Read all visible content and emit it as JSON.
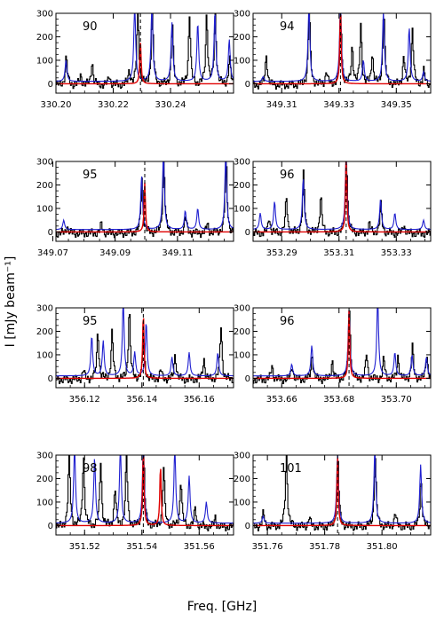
{
  "figure": {
    "ylabel": "I  [mJy beam⁻¹]",
    "xlabel": "Freq.  [GHz]"
  },
  "colors": {
    "observed": "#000000",
    "model_total": "#1f1fd0",
    "model_line": "#e00000"
  },
  "chart_data": [
    {
      "type": "line",
      "panel_label": "90",
      "xlim": [
        330.2,
        330.262
      ],
      "ylim": [
        -40,
        300
      ],
      "xticks": [
        "330.20",
        "330.22",
        "330.24"
      ],
      "xtick_values": [
        330.2,
        330.22,
        330.24
      ],
      "yticks": [
        "0",
        "100",
        "200",
        "300"
      ],
      "ytick_values": [
        0,
        100,
        200,
        300
      ],
      "line_center": 330.2295,
      "red_peaks": [
        [
          330.2295,
          180
        ]
      ],
      "blue_peaks": [
        [
          330.2035,
          90
        ],
        [
          330.2275,
          330
        ],
        [
          330.2335,
          330
        ],
        [
          330.2405,
          250
        ],
        [
          330.2495,
          250
        ],
        [
          330.2555,
          300
        ],
        [
          330.2605,
          180
        ]
      ],
      "black_peaks": [
        [
          330.2035,
          120
        ],
        [
          330.2085,
          40
        ],
        [
          330.2125,
          100
        ],
        [
          330.2185,
          40
        ],
        [
          330.2255,
          60
        ],
        [
          330.2285,
          330
        ],
        [
          330.2335,
          330
        ],
        [
          330.2405,
          260
        ],
        [
          330.2465,
          300
        ],
        [
          330.2525,
          300
        ],
        [
          330.2555,
          300
        ],
        [
          330.2605,
          110
        ]
      ]
    },
    {
      "type": "line",
      "panel_label": "94",
      "xlim": [
        349.3,
        349.362
      ],
      "ylim": [
        -40,
        300
      ],
      "xticks": [
        "349.31",
        "349.33",
        "349.35"
      ],
      "xtick_values": [
        349.31,
        349.33,
        349.35
      ],
      "yticks": [
        "0",
        "100",
        "200",
        "300"
      ],
      "ytick_values": [
        0,
        100,
        200,
        300
      ],
      "line_center": 349.3305,
      "red_peaks": [
        [
          349.3305,
          320
        ]
      ],
      "blue_peaks": [
        [
          349.3035,
          20
        ],
        [
          349.3195,
          330
        ],
        [
          349.3305,
          330
        ],
        [
          349.3385,
          90
        ],
        [
          349.3455,
          300
        ],
        [
          349.3545,
          230
        ],
        [
          349.3595,
          40
        ]
      ],
      "black_peaks": [
        [
          349.3045,
          130
        ],
        [
          349.3195,
          330
        ],
        [
          349.3255,
          60
        ],
        [
          349.3305,
          290
        ],
        [
          349.3345,
          160
        ],
        [
          349.3375,
          250
        ],
        [
          349.3415,
          130
        ],
        [
          349.3455,
          320
        ],
        [
          349.3525,
          120
        ],
        [
          349.3555,
          240
        ],
        [
          349.3595,
          60
        ]
      ]
    },
    {
      "type": "line",
      "panel_label": "95",
      "xlim": [
        349.071,
        349.128
      ],
      "ylim": [
        -40,
        300
      ],
      "xticks": [
        "349.07",
        "349.09",
        "349.11"
      ],
      "xtick_values": [
        349.07,
        349.09,
        349.11
      ],
      "yticks": [
        "0",
        "100",
        "200",
        "300"
      ],
      "ytick_values": [
        0,
        100,
        200,
        300
      ],
      "line_center": 349.0995,
      "red_peaks": [
        [
          349.0995,
          210
        ]
      ],
      "blue_peaks": [
        [
          349.0735,
          40
        ],
        [
          349.0985,
          230
        ],
        [
          349.1055,
          330
        ],
        [
          349.1125,
          80
        ],
        [
          349.1165,
          90
        ],
        [
          349.1255,
          330
        ]
      ],
      "black_peaks": [
        [
          349.0745,
          30
        ],
        [
          349.0855,
          40
        ],
        [
          349.0985,
          240
        ],
        [
          349.1055,
          330
        ],
        [
          349.1125,
          70
        ],
        [
          349.1195,
          40
        ],
        [
          349.1255,
          330
        ]
      ]
    },
    {
      "type": "line",
      "panel_label": "96",
      "xlim": [
        353.28,
        353.342
      ],
      "ylim": [
        -40,
        300
      ],
      "xticks": [
        "353.29",
        "353.31",
        "353.33"
      ],
      "xtick_values": [
        353.29,
        353.31,
        353.33
      ],
      "yticks": [
        "0",
        "100",
        "200",
        "300"
      ],
      "ytick_values": [
        0,
        100,
        200,
        300
      ],
      "line_center": 353.3125,
      "red_peaks": [
        [
          353.3125,
          330
        ]
      ],
      "blue_peaks": [
        [
          353.2825,
          70
        ],
        [
          353.2875,
          120
        ],
        [
          353.2975,
          220
        ],
        [
          353.3125,
          330
        ],
        [
          353.3245,
          130
        ],
        [
          353.3295,
          70
        ],
        [
          353.3395,
          40
        ]
      ],
      "black_peaks": [
        [
          353.2855,
          70
        ],
        [
          353.2915,
          150
        ],
        [
          353.2975,
          250
        ],
        [
          353.3035,
          160
        ],
        [
          353.3125,
          320
        ],
        [
          353.3205,
          40
        ],
        [
          353.3245,
          120
        ],
        [
          353.3325,
          40
        ]
      ]
    },
    {
      "type": "line",
      "panel_label": "95",
      "xlim": [
        356.11,
        356.172
      ],
      "ylim": [
        -40,
        300
      ],
      "xticks": [
        "356.12",
        "356.14",
        "356.16"
      ],
      "xtick_values": [
        356.12,
        356.14,
        356.16
      ],
      "yticks": [
        "0",
        "100",
        "200",
        "300"
      ],
      "ytick_values": [
        0,
        100,
        200,
        300
      ],
      "line_center": 356.1405,
      "red_peaks": [
        [
          356.1405,
          280
        ]
      ],
      "blue_peaks": [
        [
          356.1225,
          170
        ],
        [
          356.1265,
          150
        ],
        [
          356.1335,
          320
        ],
        [
          356.1375,
          100
        ],
        [
          356.1415,
          230
        ],
        [
          356.1505,
          80
        ],
        [
          356.1565,
          100
        ],
        [
          356.1665,
          100
        ]
      ],
      "black_peaks": [
        [
          356.1195,
          40
        ],
        [
          356.1245,
          210
        ],
        [
          356.1295,
          200
        ],
        [
          356.1355,
          300
        ],
        [
          356.1405,
          180
        ],
        [
          356.1465,
          40
        ],
        [
          356.1515,
          110
        ],
        [
          356.1615,
          90
        ],
        [
          356.1675,
          230
        ]
      ]
    },
    {
      "type": "line",
      "panel_label": "96",
      "xlim": [
        353.65,
        353.712
      ],
      "ylim": [
        -40,
        300
      ],
      "xticks": [
        "353.66",
        "353.68",
        "353.70"
      ],
      "xtick_values": [
        353.66,
        353.68,
        353.7
      ],
      "yticks": [
        "0",
        "100",
        "200",
        "300"
      ],
      "ytick_values": [
        0,
        100,
        200,
        300
      ],
      "line_center": 353.6835,
      "red_peaks": [
        [
          353.6835,
          290
        ]
      ],
      "blue_peaks": [
        [
          353.6635,
          50
        ],
        [
          353.6705,
          130
        ],
        [
          353.6835,
          280
        ],
        [
          353.6935,
          330
        ],
        [
          353.6995,
          100
        ],
        [
          353.7055,
          90
        ],
        [
          353.7105,
          80
        ]
      ],
      "black_peaks": [
        [
          353.6565,
          60
        ],
        [
          353.6635,
          60
        ],
        [
          353.6705,
          110
        ],
        [
          353.6775,
          80
        ],
        [
          353.6835,
          300
        ],
        [
          353.6895,
          110
        ],
        [
          353.6955,
          90
        ],
        [
          353.7005,
          100
        ],
        [
          353.7055,
          140
        ],
        [
          353.7105,
          110
        ]
      ]
    },
    {
      "type": "line",
      "panel_label": "98",
      "xlim": [
        351.51,
        351.572
      ],
      "ylim": [
        -40,
        300
      ],
      "xticks": [
        "351.52",
        "351.54",
        "351.56"
      ],
      "xtick_values": [
        351.52,
        351.54,
        351.56
      ],
      "yticks": [
        "0",
        "100",
        "200",
        "300"
      ],
      "ytick_values": [
        0,
        100,
        200,
        300
      ],
      "line_center": 351.5405,
      "red_peaks": [
        [
          351.5405,
          320
        ],
        [
          351.5465,
          260
        ]
      ],
      "blue_peaks": [
        [
          351.5165,
          330
        ],
        [
          351.5235,
          280
        ],
        [
          351.5325,
          330
        ],
        [
          351.5405,
          330
        ],
        [
          351.5515,
          320
        ],
        [
          351.5565,
          200
        ],
        [
          351.5625,
          90
        ]
      ],
      "black_peaks": [
        [
          351.5145,
          310
        ],
        [
          351.5195,
          300
        ],
        [
          351.5255,
          280
        ],
        [
          351.5305,
          160
        ],
        [
          351.5345,
          300
        ],
        [
          351.5405,
          310
        ],
        [
          351.5475,
          250
        ],
        [
          351.5535,
          200
        ],
        [
          351.5585,
          80
        ],
        [
          351.5655,
          40
        ]
      ]
    },
    {
      "type": "line",
      "panel_label": "101",
      "xlim": [
        351.755,
        351.817
      ],
      "ylim": [
        -40,
        300
      ],
      "xticks": [
        "351.76",
        "351.78",
        "351.80"
      ],
      "xtick_values": [
        351.76,
        351.78,
        351.8
      ],
      "yticks": [
        "0",
        "100",
        "200",
        "300"
      ],
      "ytick_values": [
        0,
        100,
        200,
        300
      ],
      "line_center": 351.7845,
      "red_peaks": [
        [
          351.7845,
          300
        ]
      ],
      "blue_peaks": [
        [
          351.7585,
          30
        ],
        [
          351.7845,
          300
        ],
        [
          351.7975,
          320
        ],
        [
          351.8135,
          250
        ]
      ],
      "black_peaks": [
        [
          351.7585,
          60
        ],
        [
          351.7665,
          320
        ],
        [
          351.7745,
          40
        ],
        [
          351.7845,
          290
        ],
        [
          351.7975,
          300
        ],
        [
          351.8045,
          60
        ],
        [
          351.8135,
          200
        ]
      ]
    }
  ]
}
